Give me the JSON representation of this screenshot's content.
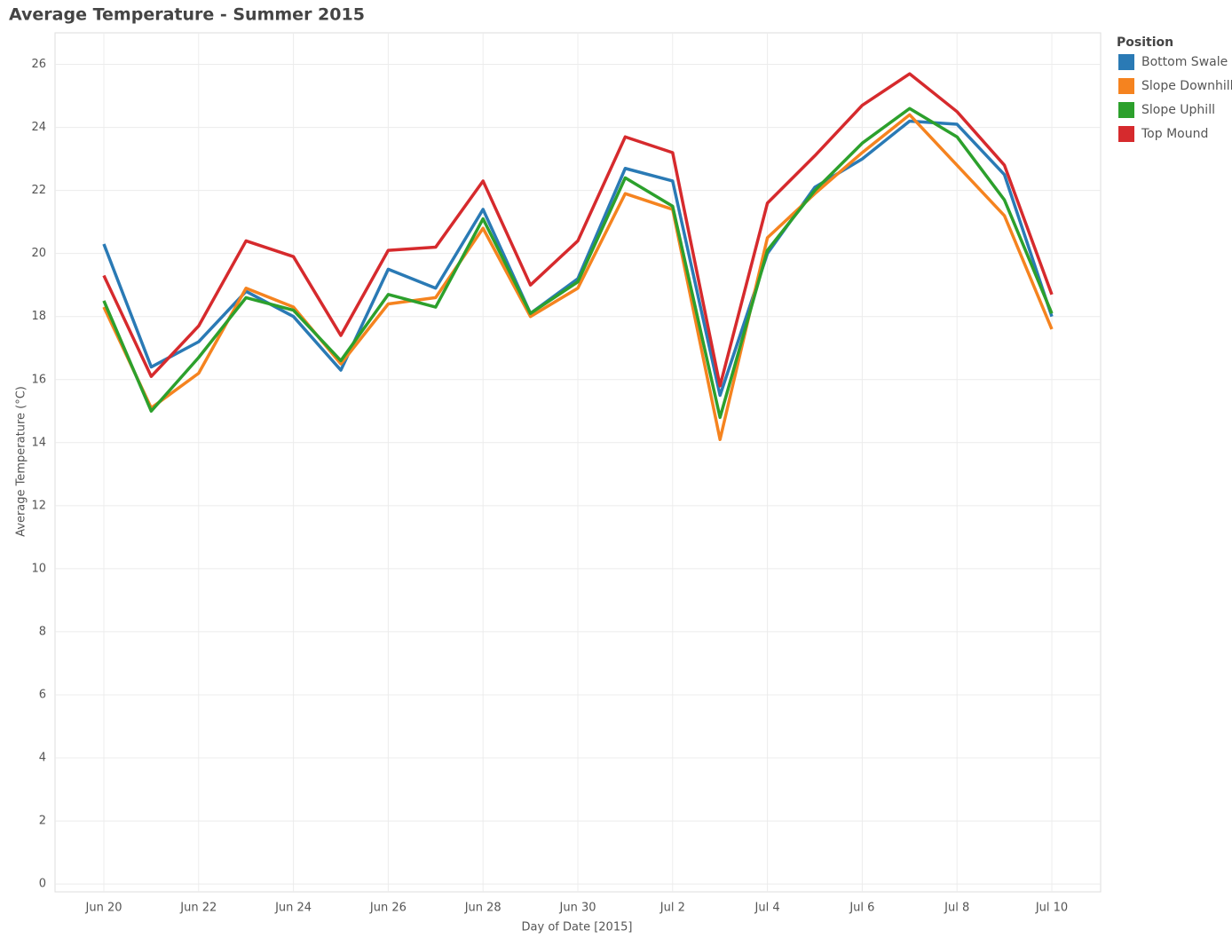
{
  "chart_data": {
    "type": "line",
    "title": "Average Temperature - Summer 2015",
    "x_label": "Day of Date [2015]",
    "y_label": "Average Temperature (°C)",
    "legend_title": "Position",
    "legend": "right",
    "grid": true,
    "categories": [
      "Jun 20",
      null,
      "Jun 22",
      null,
      "Jun 24",
      null,
      "Jun 26",
      null,
      "Jun 28",
      null,
      "Jun 30",
      null,
      "Jul 2",
      null,
      "Jul 4",
      null,
      "Jul 6",
      null,
      "Jul 8",
      null,
      "Jul 10"
    ],
    "ylim": [
      -0.25,
      27
    ],
    "yticks": [
      0,
      2,
      4,
      6,
      8,
      10,
      12,
      14,
      16,
      18,
      20,
      22,
      24,
      26
    ],
    "series": [
      {
        "name": "Bottom Swale",
        "color": "#2a7ab5",
        "values": [
          20.3,
          16.4,
          17.2,
          18.8,
          18.0,
          16.3,
          19.5,
          18.9,
          21.4,
          18.1,
          19.2,
          22.7,
          22.3,
          15.5,
          20.0,
          22.1,
          23.0,
          24.2,
          24.1,
          22.5,
          18.0
        ]
      },
      {
        "name": "Slope Downhill",
        "color": "#f5831f",
        "values": [
          18.3,
          15.1,
          16.2,
          18.9,
          18.3,
          16.5,
          18.4,
          18.6,
          20.8,
          18.0,
          18.9,
          21.9,
          21.4,
          14.1,
          20.5,
          21.9,
          23.2,
          24.4,
          22.8,
          21.2,
          17.6
        ]
      },
      {
        "name": "Slope Uphill",
        "color": "#2ca02c",
        "values": [
          18.5,
          15.0,
          16.7,
          18.6,
          18.2,
          16.6,
          18.7,
          18.3,
          21.1,
          18.1,
          19.1,
          22.4,
          21.5,
          14.8,
          20.1,
          22.0,
          23.5,
          24.6,
          23.7,
          21.7,
          18.1
        ]
      },
      {
        "name": "Top Mound",
        "color": "#d62a2d",
        "values": [
          19.3,
          16.1,
          17.7,
          20.4,
          19.9,
          17.4,
          20.1,
          20.2,
          22.3,
          19.0,
          20.4,
          23.7,
          23.2,
          15.8,
          21.6,
          23.1,
          24.7,
          25.7,
          24.5,
          22.8,
          18.7
        ]
      }
    ]
  }
}
